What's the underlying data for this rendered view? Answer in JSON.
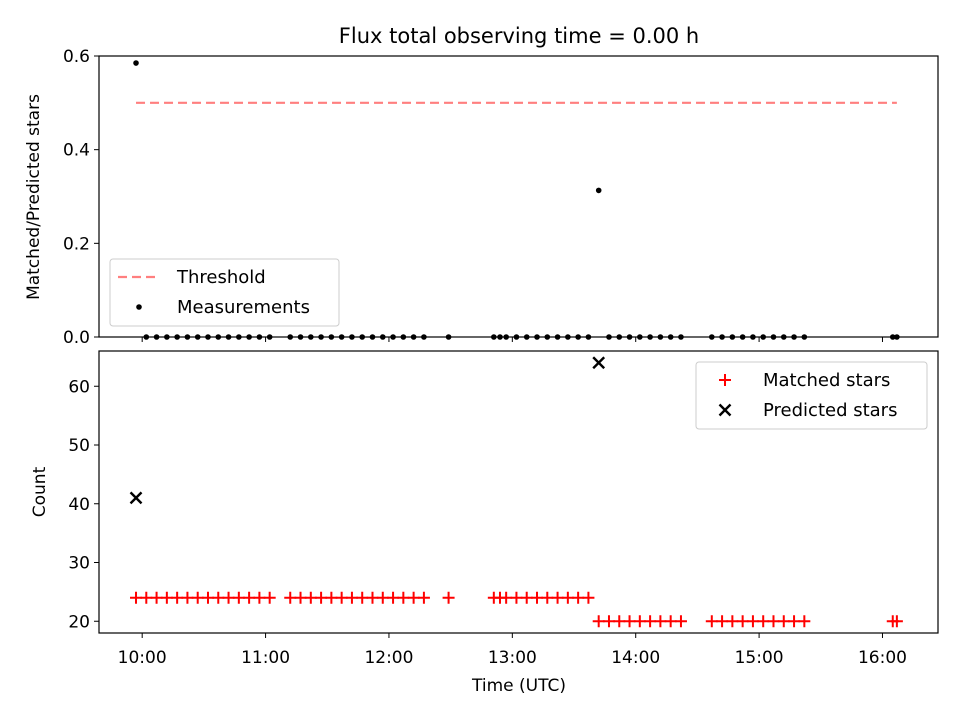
{
  "figure": {
    "title": "Flux total observing time = 0.00 h"
  },
  "chart_data": [
    {
      "type": "scatter",
      "ylabel": "Matched/Predicted stars",
      "xlabel": "",
      "xlim": [
        "09:39",
        "16:27"
      ],
      "ylim": [
        0.0,
        0.6
      ],
      "yticks": [
        0.0,
        0.2,
        0.4,
        0.6
      ],
      "ytick_labels": [
        "0.0",
        "0.2",
        "0.4",
        "0.6"
      ],
      "grid": false,
      "legend_position": "lower-left",
      "threshold": {
        "name": "Threshold",
        "color": "#ff7f7f",
        "value": 0.5,
        "x_range": [
          "09:57",
          "16:07"
        ]
      },
      "series": [
        {
          "name": "Measurements",
          "marker": "dot",
          "color": "#000000",
          "points": [
            [
              "09:57",
              0.585
            ],
            [
              "13:42",
              0.313
            ],
            [
              "10:02",
              0
            ],
            [
              "10:07",
              0
            ],
            [
              "10:12",
              0
            ],
            [
              "10:17",
              0
            ],
            [
              "10:22",
              0
            ],
            [
              "10:27",
              0
            ],
            [
              "10:32",
              0
            ],
            [
              "10:37",
              0
            ],
            [
              "10:42",
              0
            ],
            [
              "10:47",
              0
            ],
            [
              "10:52",
              0
            ],
            [
              "10:57",
              0
            ],
            [
              "11:02",
              0
            ],
            [
              "11:12",
              0
            ],
            [
              "11:17",
              0
            ],
            [
              "11:22",
              0
            ],
            [
              "11:27",
              0
            ],
            [
              "11:32",
              0
            ],
            [
              "11:37",
              0
            ],
            [
              "11:42",
              0
            ],
            [
              "11:47",
              0
            ],
            [
              "11:52",
              0
            ],
            [
              "11:57",
              0
            ],
            [
              "12:02",
              0
            ],
            [
              "12:07",
              0
            ],
            [
              "12:12",
              0
            ],
            [
              "12:17",
              0
            ],
            [
              "12:29",
              0
            ],
            [
              "12:51",
              0
            ],
            [
              "12:54",
              0
            ],
            [
              "12:57",
              0
            ],
            [
              "13:02",
              0
            ],
            [
              "13:07",
              0
            ],
            [
              "13:12",
              0
            ],
            [
              "13:17",
              0
            ],
            [
              "13:22",
              0
            ],
            [
              "13:27",
              0
            ],
            [
              "13:32",
              0
            ],
            [
              "13:37",
              0
            ],
            [
              "13:47",
              0
            ],
            [
              "13:52",
              0
            ],
            [
              "13:57",
              0
            ],
            [
              "14:02",
              0
            ],
            [
              "14:07",
              0
            ],
            [
              "14:12",
              0
            ],
            [
              "14:17",
              0
            ],
            [
              "14:22",
              0
            ],
            [
              "14:37",
              0
            ],
            [
              "14:42",
              0
            ],
            [
              "14:47",
              0
            ],
            [
              "14:52",
              0
            ],
            [
              "14:57",
              0
            ],
            [
              "15:02",
              0
            ],
            [
              "15:07",
              0
            ],
            [
              "15:12",
              0
            ],
            [
              "15:17",
              0
            ],
            [
              "15:22",
              0
            ],
            [
              "16:05",
              0
            ],
            [
              "16:07",
              0
            ]
          ]
        }
      ]
    },
    {
      "type": "scatter",
      "ylabel": "Count",
      "xlabel": "Time (UTC)",
      "xlim": [
        "09:39",
        "16:27"
      ],
      "ylim": [
        18,
        66
      ],
      "yticks": [
        20,
        30,
        40,
        50,
        60
      ],
      "ytick_labels": [
        "20",
        "30",
        "40",
        "50",
        "60"
      ],
      "xticks": [
        "10:00",
        "11:00",
        "12:00",
        "13:00",
        "14:00",
        "15:00",
        "16:00"
      ],
      "grid": false,
      "legend_position": "upper-right",
      "series": [
        {
          "name": "Matched stars",
          "marker": "plus",
          "color": "#ff0000",
          "points": [
            [
              "09:57",
              24
            ],
            [
              "10:02",
              24
            ],
            [
              "10:07",
              24
            ],
            [
              "10:12",
              24
            ],
            [
              "10:17",
              24
            ],
            [
              "10:22",
              24
            ],
            [
              "10:27",
              24
            ],
            [
              "10:32",
              24
            ],
            [
              "10:37",
              24
            ],
            [
              "10:42",
              24
            ],
            [
              "10:47",
              24
            ],
            [
              "10:52",
              24
            ],
            [
              "10:57",
              24
            ],
            [
              "11:02",
              24
            ],
            [
              "11:12",
              24
            ],
            [
              "11:17",
              24
            ],
            [
              "11:22",
              24
            ],
            [
              "11:27",
              24
            ],
            [
              "11:32",
              24
            ],
            [
              "11:37",
              24
            ],
            [
              "11:42",
              24
            ],
            [
              "11:47",
              24
            ],
            [
              "11:52",
              24
            ],
            [
              "11:57",
              24
            ],
            [
              "12:02",
              24
            ],
            [
              "12:07",
              24
            ],
            [
              "12:12",
              24
            ],
            [
              "12:17",
              24
            ],
            [
              "12:29",
              24
            ],
            [
              "12:51",
              24
            ],
            [
              "12:54",
              24
            ],
            [
              "12:57",
              24
            ],
            [
              "13:02",
              24
            ],
            [
              "13:07",
              24
            ],
            [
              "13:12",
              24
            ],
            [
              "13:17",
              24
            ],
            [
              "13:22",
              24
            ],
            [
              "13:27",
              24
            ],
            [
              "13:32",
              24
            ],
            [
              "13:37",
              24
            ],
            [
              "13:42",
              20
            ],
            [
              "13:47",
              20
            ],
            [
              "13:52",
              20
            ],
            [
              "13:57",
              20
            ],
            [
              "14:02",
              20
            ],
            [
              "14:07",
              20
            ],
            [
              "14:12",
              20
            ],
            [
              "14:17",
              20
            ],
            [
              "14:22",
              20
            ],
            [
              "14:37",
              20
            ],
            [
              "14:42",
              20
            ],
            [
              "14:47",
              20
            ],
            [
              "14:52",
              20
            ],
            [
              "14:57",
              20
            ],
            [
              "15:02",
              20
            ],
            [
              "15:07",
              20
            ],
            [
              "15:12",
              20
            ],
            [
              "15:17",
              20
            ],
            [
              "15:22",
              20
            ],
            [
              "16:05",
              20
            ],
            [
              "16:07",
              20
            ]
          ]
        },
        {
          "name": "Predicted stars",
          "marker": "x",
          "color": "#000000",
          "points": [
            [
              "09:57",
              41
            ],
            [
              "13:42",
              64
            ]
          ]
        }
      ]
    }
  ]
}
